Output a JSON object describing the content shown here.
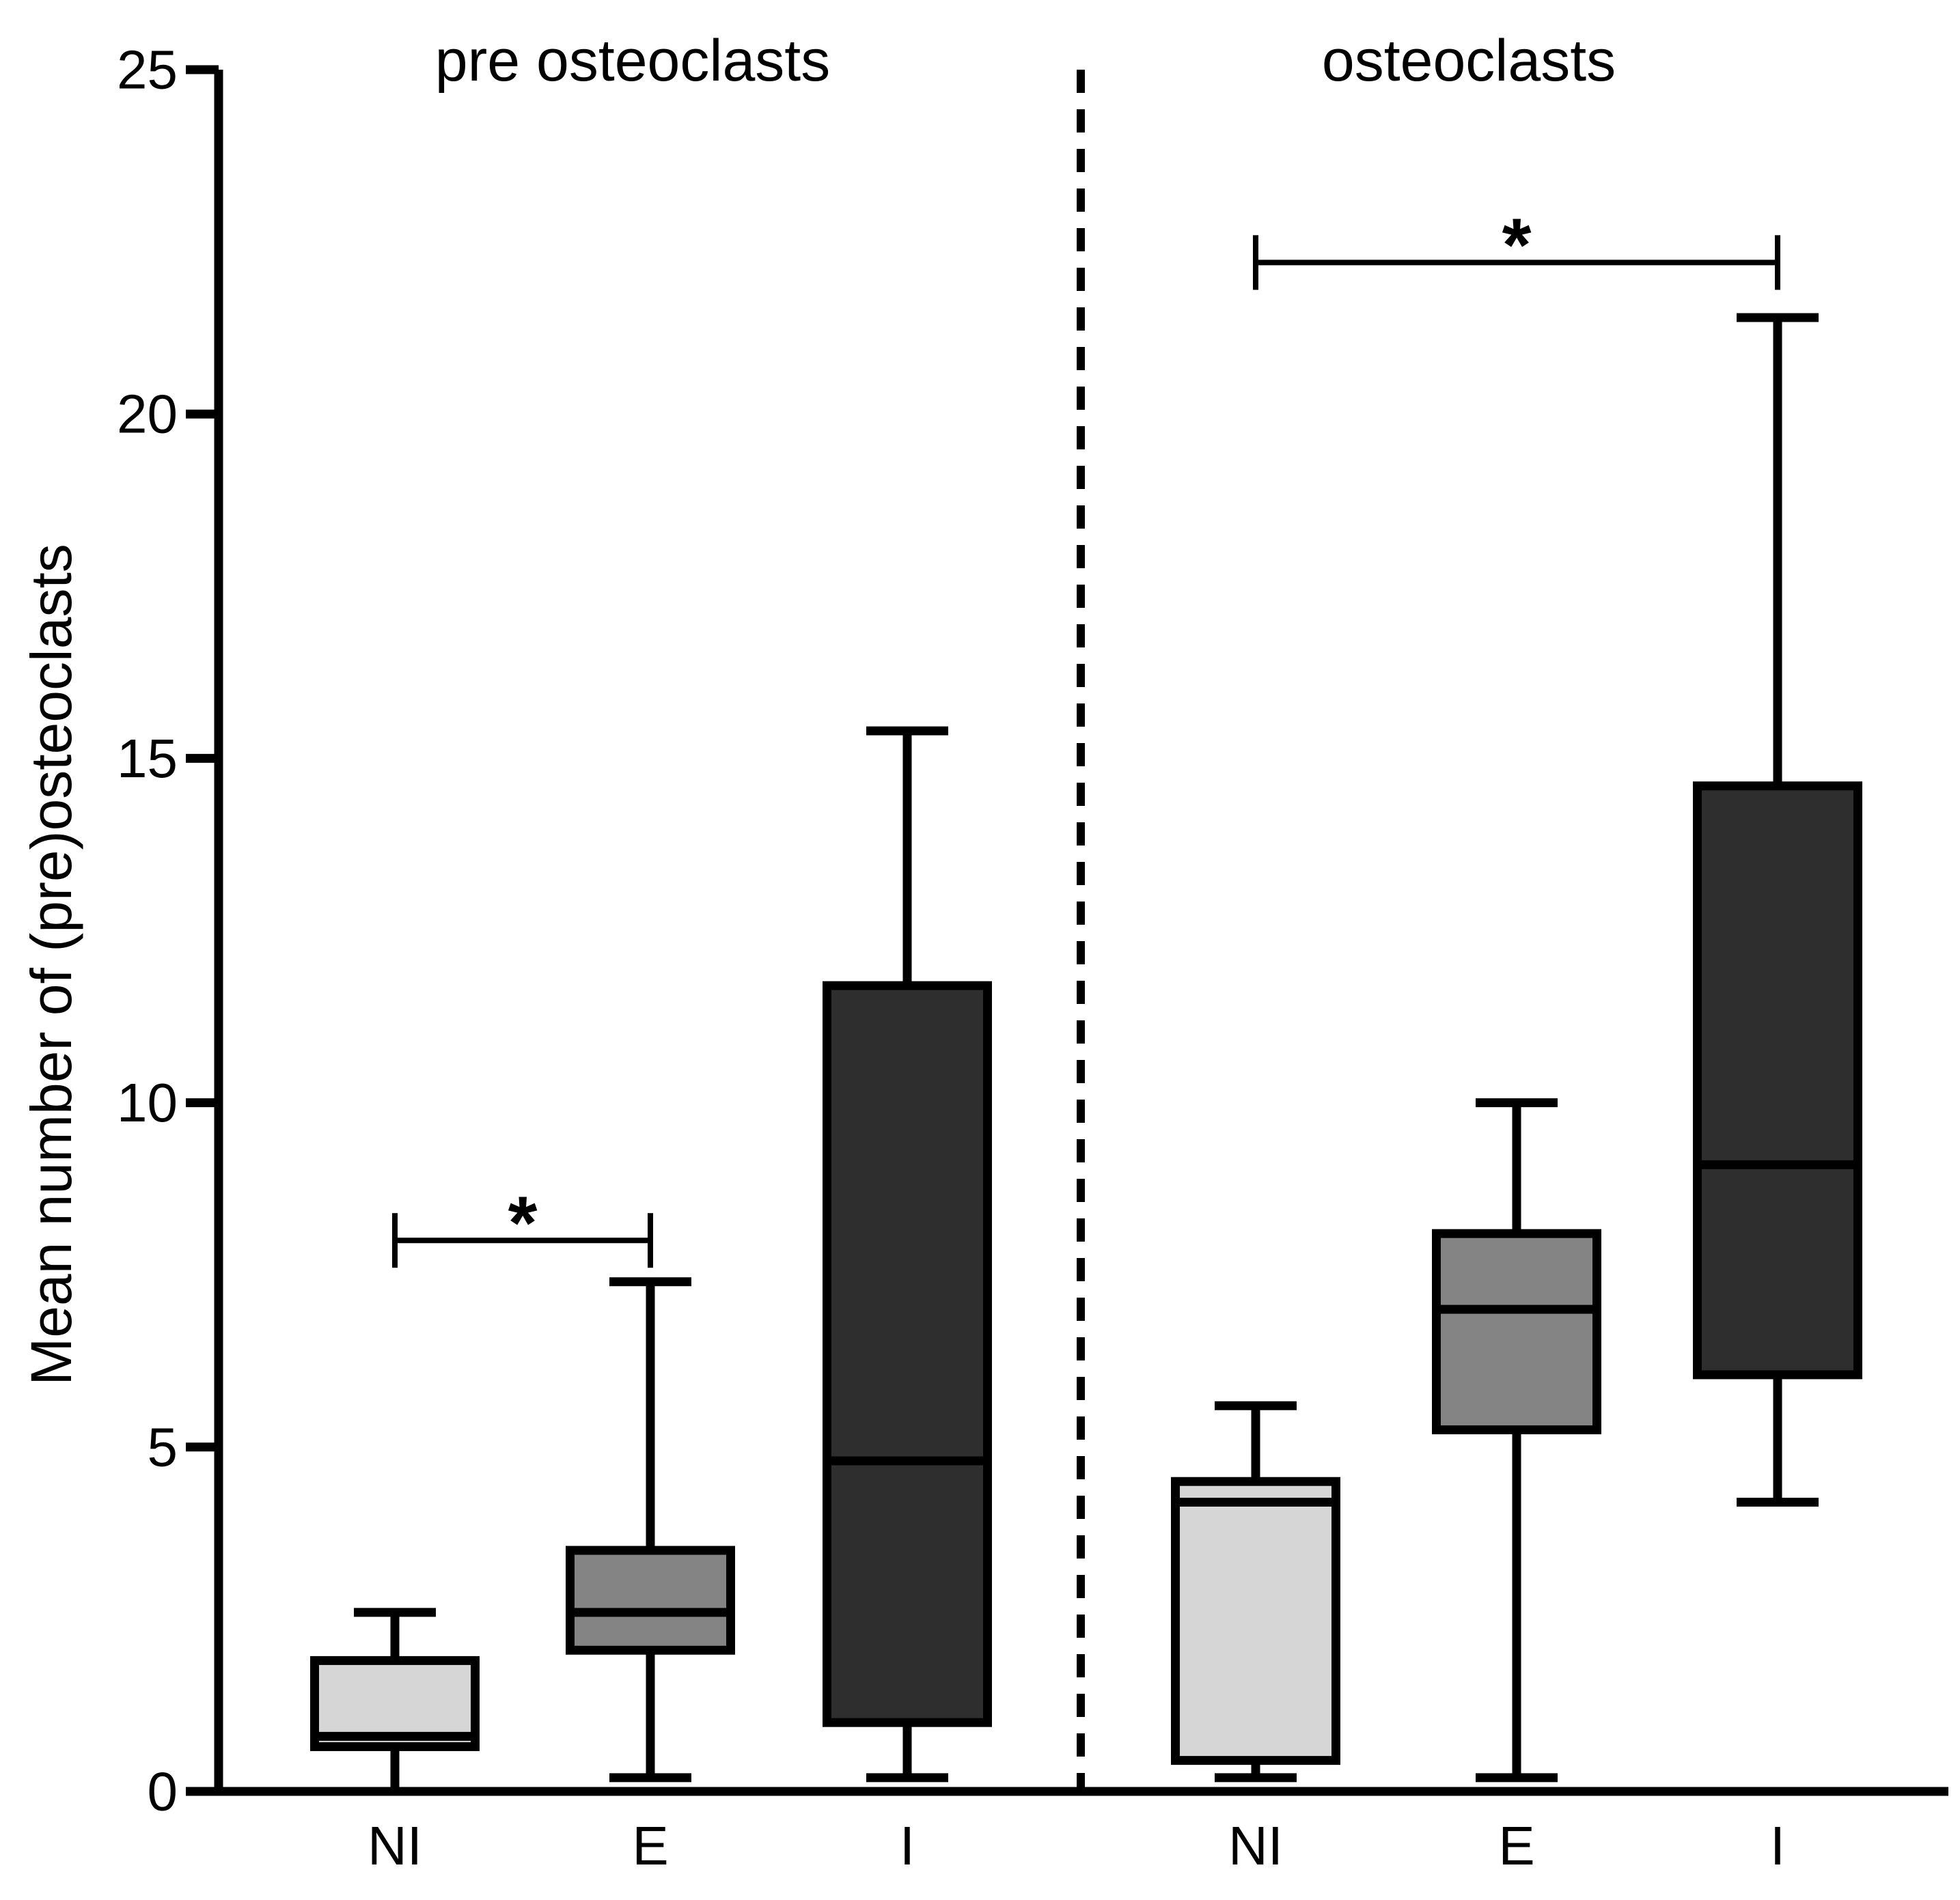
{
  "chart_data": {
    "type": "box",
    "title": "",
    "xlabel": "",
    "ylabel": "Mean number of (pre)osteoclasts",
    "ylim": [
      0,
      25
    ],
    "yticks": [
      "0",
      "5",
      "10",
      "15",
      "20",
      "25"
    ],
    "grid": false,
    "groups": [
      {
        "name": "pre osteoclasts",
        "boxes": [
          {
            "category": "NI",
            "color": "#d6d6d6",
            "min": 0,
            "q1": 0.65,
            "median": 0.8,
            "q3": 1.9,
            "max": 2.6
          },
          {
            "category": "E",
            "color": "#848484",
            "min": 0.2,
            "q1": 2.05,
            "median": 2.6,
            "q3": 3.5,
            "max": 7.4
          },
          {
            "category": "I",
            "color": "#2e2e2e",
            "min": 0.2,
            "q1": 1.0,
            "median": 4.8,
            "q3": 11.7,
            "max": 15.4
          }
        ],
        "significance": [
          {
            "from": "NI",
            "to": "E",
            "label": "*",
            "y": 8.0
          }
        ]
      },
      {
        "name": "osteoclasts",
        "boxes": [
          {
            "category": "NI",
            "color": "#d6d6d6",
            "min": 0.2,
            "q1": 0.45,
            "median": 4.2,
            "q3": 4.5,
            "max": 5.6
          },
          {
            "category": "E",
            "color": "#848484",
            "min": 0.2,
            "q1": 5.25,
            "median": 7.0,
            "q3": 8.1,
            "max": 10.0
          },
          {
            "category": "I",
            "color": "#2e2e2e",
            "min": 4.2,
            "q1": 6.05,
            "median": 9.1,
            "q3": 14.6,
            "max": 21.4
          }
        ],
        "significance": [
          {
            "from": "NI",
            "to": "I",
            "label": "*",
            "y": 22.2
          }
        ]
      }
    ]
  }
}
